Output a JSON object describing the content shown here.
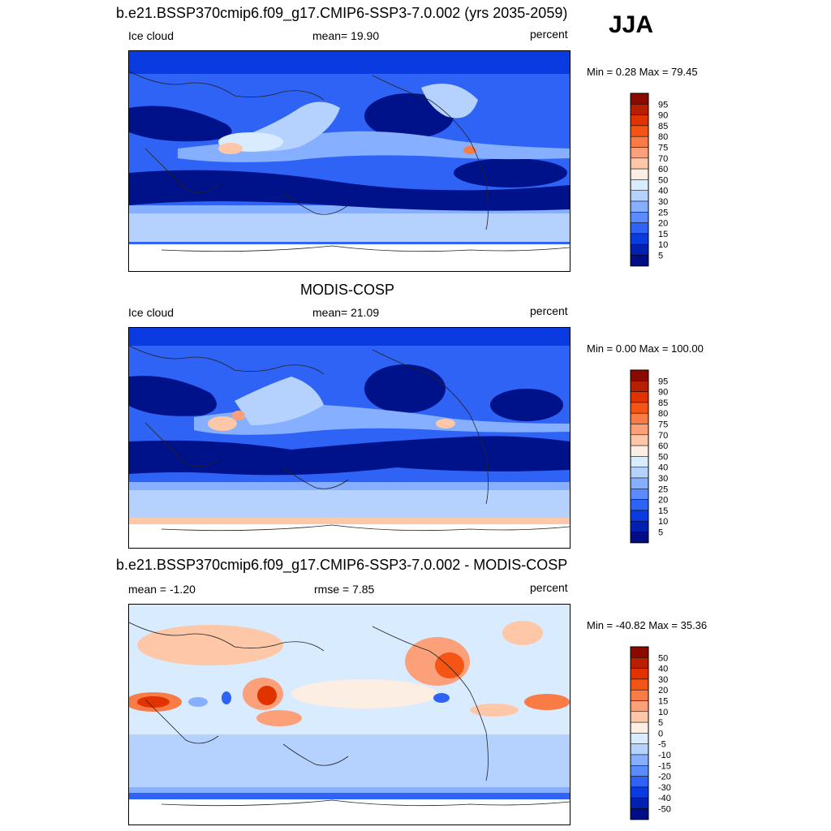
{
  "season": "JJA",
  "panels": [
    {
      "title": "b.e21.BSSP370cmip6.f09_g17.CMIP6-SSP3-7.0.002 (yrs 2035-2059)",
      "left_label": "Ice cloud",
      "center_label": "mean=  19.90",
      "right_label": "percent",
      "minmax": "Min =    0.28 Max =  79.45",
      "type": "abs",
      "colorbar": {
        "labels": [
          "95",
          "90",
          "85",
          "80",
          "75",
          "70",
          "60",
          "50",
          "40",
          "30",
          "25",
          "20",
          "15",
          "10",
          "5"
        ],
        "colors": [
          "#8b0a00",
          "#b81f00",
          "#e03300",
          "#f45414",
          "#f97b46",
          "#fca07a",
          "#fdc7a8",
          "#fdeee4",
          "#d9ebff",
          "#b5d2ff",
          "#86b0ff",
          "#5b8cff",
          "#2f63f5",
          "#0a3be0",
          "#0020b0",
          "#000d85"
        ]
      }
    },
    {
      "title": "MODIS-COSP",
      "left_label": "Ice cloud",
      "center_label": "mean=  21.09",
      "right_label": "percent",
      "minmax": "Min =    0.00 Max = 100.00",
      "type": "abs",
      "colorbar": {
        "labels": [
          "95",
          "90",
          "85",
          "80",
          "75",
          "70",
          "60",
          "50",
          "40",
          "30",
          "25",
          "20",
          "15",
          "10",
          "5"
        ],
        "colors": [
          "#8b0a00",
          "#b81f00",
          "#e03300",
          "#f45414",
          "#f97b46",
          "#fca07a",
          "#fdc7a8",
          "#fdeee4",
          "#d9ebff",
          "#b5d2ff",
          "#86b0ff",
          "#5b8cff",
          "#2f63f5",
          "#0a3be0",
          "#0020b0",
          "#000d85"
        ]
      }
    },
    {
      "title": "b.e21.BSSP370cmip6.f09_g17.CMIP6-SSP3-7.0.002 - MODIS-COSP",
      "left_label": "mean =  -1.20",
      "center_label": "rmse =   7.85",
      "right_label": "percent",
      "minmax": "Min = -40.82 Max =  35.36",
      "type": "diff",
      "colorbar": {
        "labels": [
          "50",
          "40",
          "30",
          "20",
          "15",
          "10",
          "5",
          "0",
          "-5",
          "-10",
          "-15",
          "-20",
          "-30",
          "-40",
          "-50"
        ],
        "colors": [
          "#8b0a00",
          "#b81f00",
          "#e03300",
          "#f45414",
          "#f97b46",
          "#fca07a",
          "#fdc7a8",
          "#fdeee4",
          "#d9ebff",
          "#b5d2ff",
          "#86b0ff",
          "#5b8cff",
          "#2f63f5",
          "#0a3be0",
          "#0020b0",
          "#000d85"
        ]
      }
    }
  ],
  "colors": {
    "deep_blue": "#00128a",
    "mid_blue": "#2f63f5",
    "light_blue": "#b5d2ff",
    "pale_blue": "#d9ebff",
    "peach": "#fdc7a8",
    "orange": "#f45414",
    "red": "#e03300",
    "coast": "#222222"
  }
}
